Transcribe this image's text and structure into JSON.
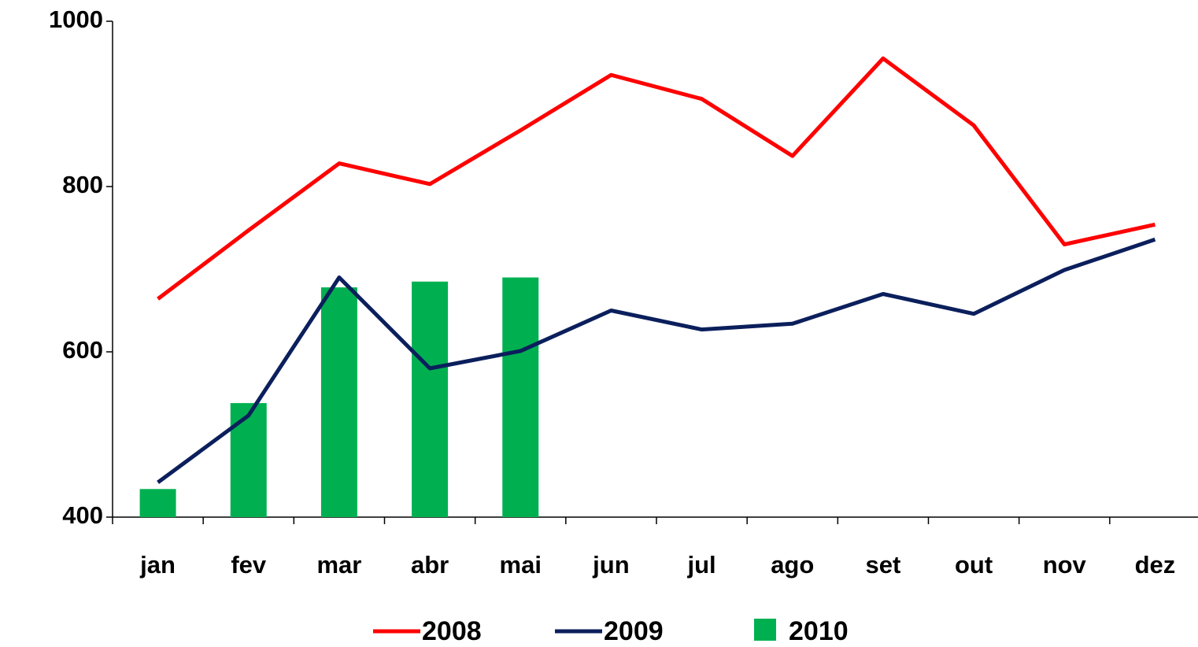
{
  "chart_data": {
    "type": "combo",
    "categories": [
      "jan",
      "fev",
      "mar",
      "abr",
      "mai",
      "jun",
      "jul",
      "ago",
      "set",
      "out",
      "nov",
      "dez"
    ],
    "series": [
      {
        "name": "2008",
        "type": "line",
        "color": "#ff0000",
        "values": [
          664,
          747,
          828,
          803,
          868,
          935,
          906,
          837,
          955,
          874,
          730,
          754
        ]
      },
      {
        "name": "2009",
        "type": "line",
        "color": "#0b1f5c",
        "values": [
          442,
          523,
          690,
          580,
          601,
          650,
          627,
          634,
          670,
          646,
          699,
          736
        ]
      },
      {
        "name": "2010",
        "type": "bar",
        "color": "#00b050",
        "values": [
          434,
          538,
          678,
          685,
          690,
          null,
          null,
          null,
          null,
          null,
          null,
          null
        ]
      }
    ],
    "ylim": [
      400,
      1000
    ],
    "yticks": [
      400,
      600,
      800,
      1000
    ],
    "grid": false,
    "legend": "bottom"
  }
}
